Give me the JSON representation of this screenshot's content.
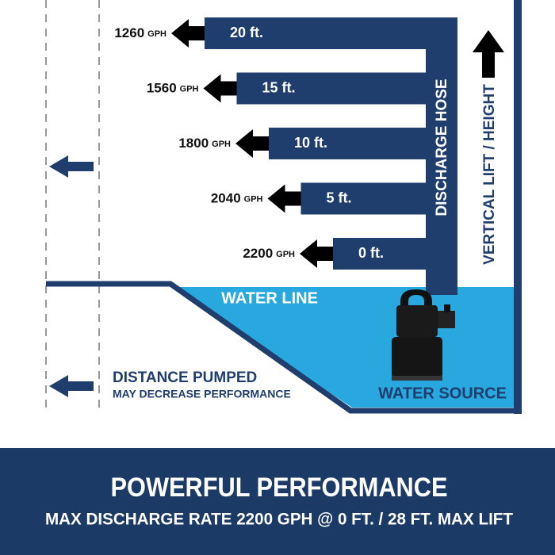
{
  "levels": [
    {
      "height": "20 ft.",
      "rate": "1260",
      "unit": "GPH"
    },
    {
      "height": "15 ft.",
      "rate": "1560",
      "unit": "GPH"
    },
    {
      "height": "10 ft.",
      "rate": "1800",
      "unit": "GPH"
    },
    {
      "height": "5 ft.",
      "rate": "2040",
      "unit": "GPH"
    },
    {
      "height": "0 ft.",
      "rate": "2200",
      "unit": "GPH"
    }
  ],
  "labels": {
    "discharge_hose": "DISCHARGE HOSE",
    "vertical_lift": "VERTICAL LIFT / HEIGHT",
    "water_line": "WATER LINE",
    "water_source": "WATER SOURCE",
    "distance": "DISTANCE PUMPED",
    "distance_note": "MAY DECREASE PERFORMANCE"
  },
  "footer": {
    "title": "POWERFUL PERFORMANCE",
    "subtitle": "MAX DISCHARGE RATE 2200 GPH @ 0 FT. / 28 FT. MAX LIFT"
  }
}
